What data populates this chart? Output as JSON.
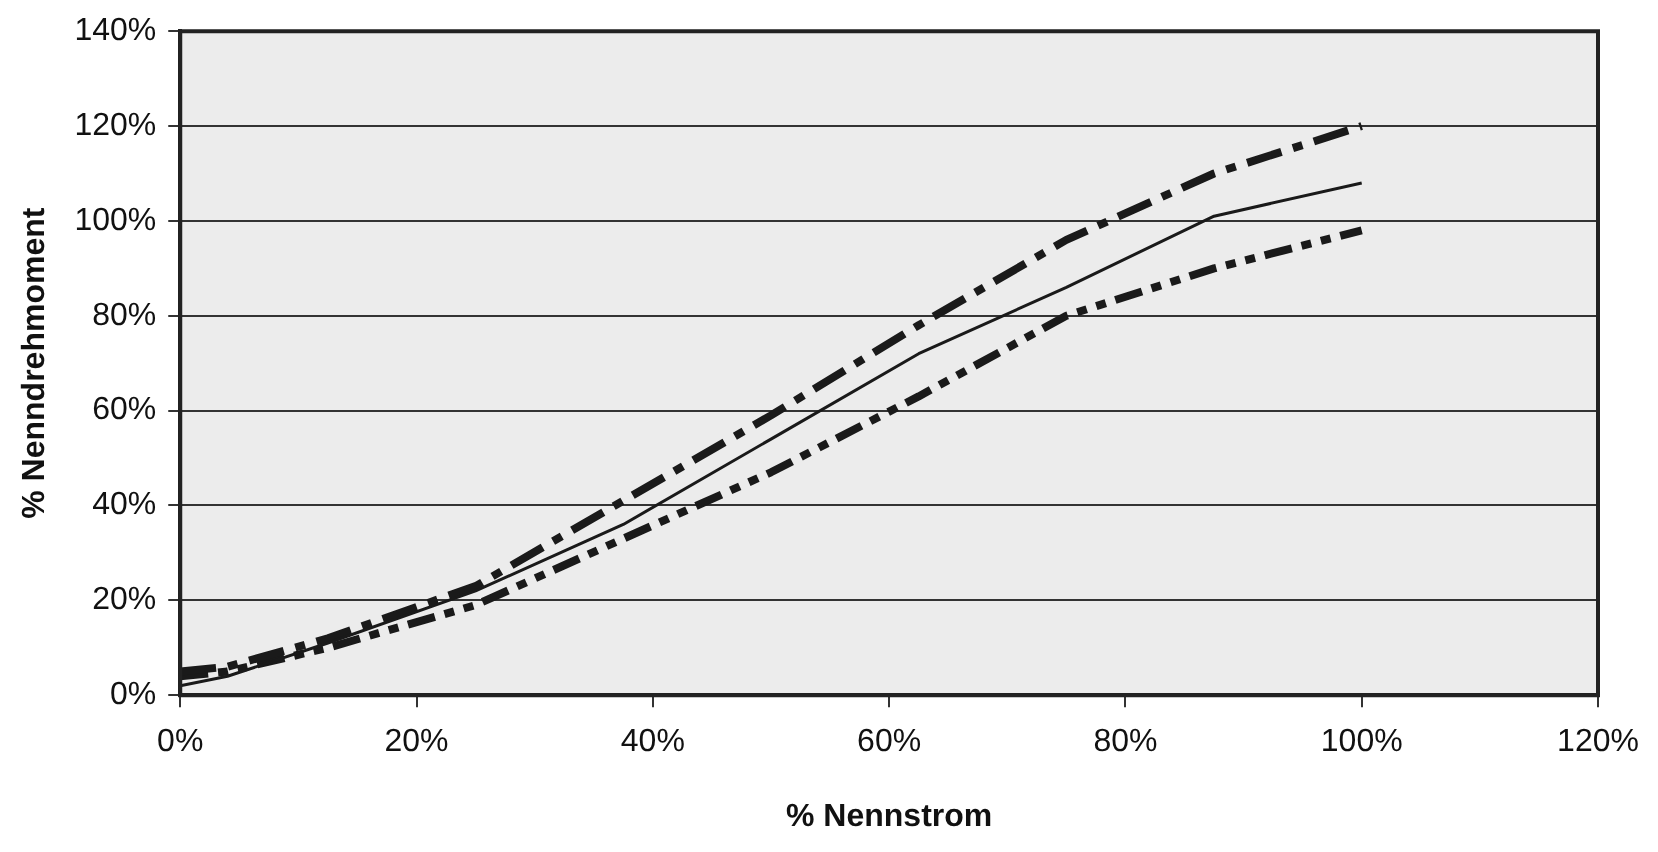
{
  "chart_data": {
    "type": "line",
    "xlabel": "% Nennstrom",
    "ylabel": "% Nenndrehmoment",
    "x": [
      0,
      4,
      12.5,
      25,
      37.5,
      50,
      62.5,
      75,
      87.5,
      100
    ],
    "series": [
      {
        "color": "#1a1a1a",
        "line_style": "solid",
        "values": [
          2,
          4,
          11,
          22,
          36,
          54,
          72,
          86,
          101,
          108
        ]
      },
      {
        "color": "#1a1a1a",
        "line_style": "dashed",
        "values": [
          5,
          6,
          12,
          23,
          41,
          59,
          78,
          96,
          110,
          120
        ]
      },
      {
        "color": "#1a1a1a",
        "line_style": "dotted",
        "values": [
          4,
          5,
          10,
          19,
          33,
          47,
          63,
          80,
          90,
          98
        ]
      }
    ],
    "xlim": [
      0,
      120
    ],
    "xticks": [
      {
        "value": 0,
        "label": "0%"
      },
      {
        "value": 20,
        "label": "20%"
      },
      {
        "value": 40,
        "label": "40%"
      },
      {
        "value": 60,
        "label": "60%"
      },
      {
        "value": 80,
        "label": "80%"
      },
      {
        "value": 100,
        "label": "100%"
      },
      {
        "value": 120,
        "label": "120%"
      }
    ],
    "ylim": [
      0,
      140
    ],
    "yticks": [
      {
        "value": 0,
        "label": "0%"
      },
      {
        "value": 20,
        "label": "20%"
      },
      {
        "value": 40,
        "label": "40%"
      },
      {
        "value": 60,
        "label": "60%"
      },
      {
        "value": 80,
        "label": "80%"
      },
      {
        "value": 100,
        "label": "100%"
      },
      {
        "value": 120,
        "label": "120%"
      },
      {
        "value": 140,
        "label": "140%"
      }
    ],
    "grid": "y",
    "legend": false,
    "marker": "none"
  }
}
